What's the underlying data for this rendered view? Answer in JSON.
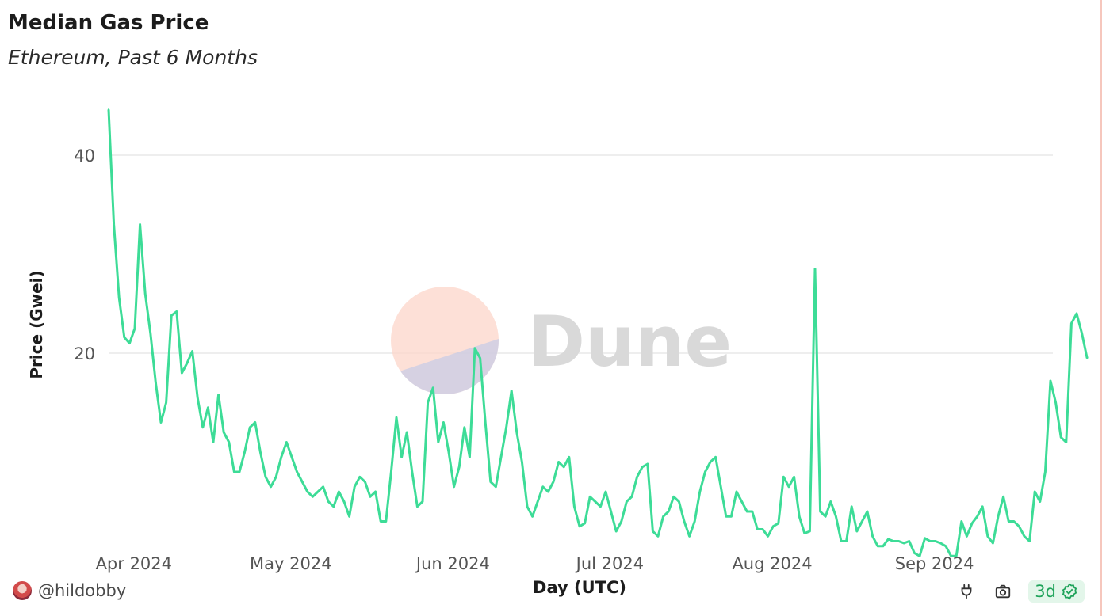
{
  "header": {
    "title": "Median Gas Price",
    "subtitle": "Ethereum, Past 6 Months"
  },
  "watermark": {
    "text": "Dune"
  },
  "footer": {
    "username": "@hildobby",
    "badge_label": "3d",
    "icons": [
      "plug-icon",
      "camera-icon",
      "check-badge-icon"
    ]
  },
  "colors": {
    "line": "#3ddc97",
    "grid": "#e9e9e9",
    "badge_text": "#1fa35a",
    "badge_bg": "#e3f6ea"
  },
  "chart_data": {
    "type": "line",
    "title": "Median Gas Price",
    "subtitle": "Ethereum, Past 6 Months",
    "xlabel": "Day (UTC)",
    "ylabel": "Price (Gwei)",
    "x_start": "2024-03-29",
    "x_ticks": [
      {
        "date": "2024-04-01",
        "label": "Apr 2024"
      },
      {
        "date": "2024-05-01",
        "label": "May 2024"
      },
      {
        "date": "2024-06-01",
        "label": "Jun 2024"
      },
      {
        "date": "2024-07-01",
        "label": "Jul 2024"
      },
      {
        "date": "2024-08-01",
        "label": "Aug 2024"
      },
      {
        "date": "2024-09-01",
        "label": "Sep 2024"
      }
    ],
    "y_ticks": [
      20,
      40
    ],
    "ylim": [
      0,
      45
    ],
    "grid": true,
    "legend": "none",
    "series": [
      {
        "values": [
          44.6,
          33.0,
          25.6,
          21.6,
          21.0,
          22.5,
          33.0,
          26.0,
          22.0,
          17.0,
          13.0,
          15.0,
          23.8,
          24.2,
          18.0,
          19.0,
          20.2,
          15.5,
          12.5,
          14.5,
          11.0,
          15.8,
          12.0,
          11.0,
          8.0,
          8.0,
          10.0,
          12.5,
          13.0,
          10.0,
          7.5,
          6.5,
          7.5,
          9.5,
          11.0,
          9.5,
          8.0,
          7.0,
          6.0,
          5.5,
          6.0,
          6.5,
          5.0,
          4.5,
          6.0,
          5.0,
          3.5,
          6.5,
          7.5,
          7.0,
          5.5,
          6.0,
          3.0,
          3.0,
          8.0,
          13.5,
          9.5,
          12.0,
          8.0,
          4.5,
          5.0,
          15.0,
          16.5,
          11.0,
          13.0,
          10.0,
          6.5,
          8.5,
          12.5,
          9.5,
          20.5,
          19.5,
          13.0,
          7.0,
          6.5,
          9.5,
          12.5,
          16.2,
          12.0,
          9.0,
          4.5,
          3.5,
          5.0,
          6.5,
          6.0,
          7.0,
          9.0,
          8.5,
          9.5,
          4.5,
          2.5,
          2.8,
          5.5,
          5.0,
          4.5,
          6.0,
          4.0,
          2.0,
          3.0,
          5.0,
          5.5,
          7.5,
          8.5,
          8.8,
          2.0,
          1.5,
          3.5,
          4.0,
          5.5,
          5.0,
          3.0,
          1.5,
          3.0,
          6.0,
          8.0,
          9.0,
          9.5,
          6.5,
          3.5,
          3.5,
          6.0,
          5.0,
          4.0,
          4.0,
          2.2,
          2.2,
          1.5,
          2.5,
          2.8,
          7.5,
          6.5,
          7.5,
          3.5,
          1.8,
          2.0,
          28.5,
          4.0,
          3.5,
          5.0,
          3.5,
          1.0,
          1.0,
          4.5,
          2.0,
          3.0,
          4.0,
          1.5,
          0.5,
          0.5,
          1.2,
          1.0,
          1.0,
          0.8,
          1.0,
          -0.2,
          -0.5,
          1.3,
          1.0,
          1.0,
          0.8,
          0.5,
          -0.5,
          -0.5,
          3.0,
          1.5,
          2.8,
          3.5,
          4.5,
          1.5,
          0.8,
          3.5,
          5.5,
          3.0,
          3.0,
          2.5,
          1.5,
          1.0,
          6.0,
          5.0,
          8.0,
          17.2,
          15.0,
          11.5,
          11.0,
          23.0,
          24.0,
          22.0,
          19.5
        ]
      }
    ]
  }
}
